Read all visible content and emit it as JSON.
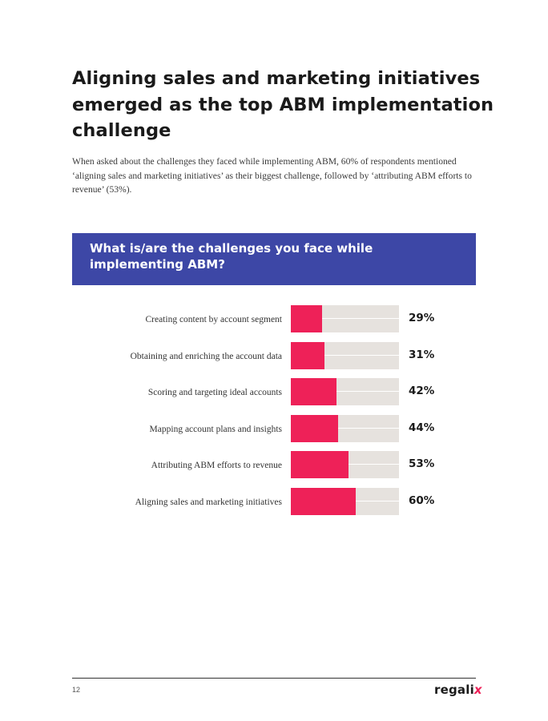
{
  "heading": "Aligning sales and marketing initiatives emerged as the top ABM implementation challenge",
  "intro": "When asked about the challenges they faced while implementing ABM, 60% of respondents mentioned ‘aligning sales and marketing initiatives’ as their biggest challenge, followed by ‘attributing ABM efforts to revenue’ (53%).",
  "question": "What is/are the challenges you face while implementing ABM?",
  "colors": {
    "accent": "#ee2158",
    "banner": "#3d47a6",
    "track": "#e6e2de"
  },
  "chart_data": {
    "type": "bar",
    "orientation": "horizontal",
    "categories": [
      "Creating content by account segment",
      "Obtaining and enriching the account data",
      "Scoring and targeting ideal accounts",
      "Mapping account plans and insights",
      "Attributing ABM efforts to revenue",
      "Aligning sales and marketing initiatives"
    ],
    "values": [
      29,
      31,
      42,
      44,
      53,
      60
    ],
    "value_labels": [
      "29%",
      "31%",
      "42%",
      "44%",
      "53%",
      "60%"
    ],
    "xlim": [
      0,
      100
    ],
    "grid": false
  },
  "footer": {
    "page_number": "12",
    "logo_main": "regali",
    "logo_accent": "x"
  }
}
